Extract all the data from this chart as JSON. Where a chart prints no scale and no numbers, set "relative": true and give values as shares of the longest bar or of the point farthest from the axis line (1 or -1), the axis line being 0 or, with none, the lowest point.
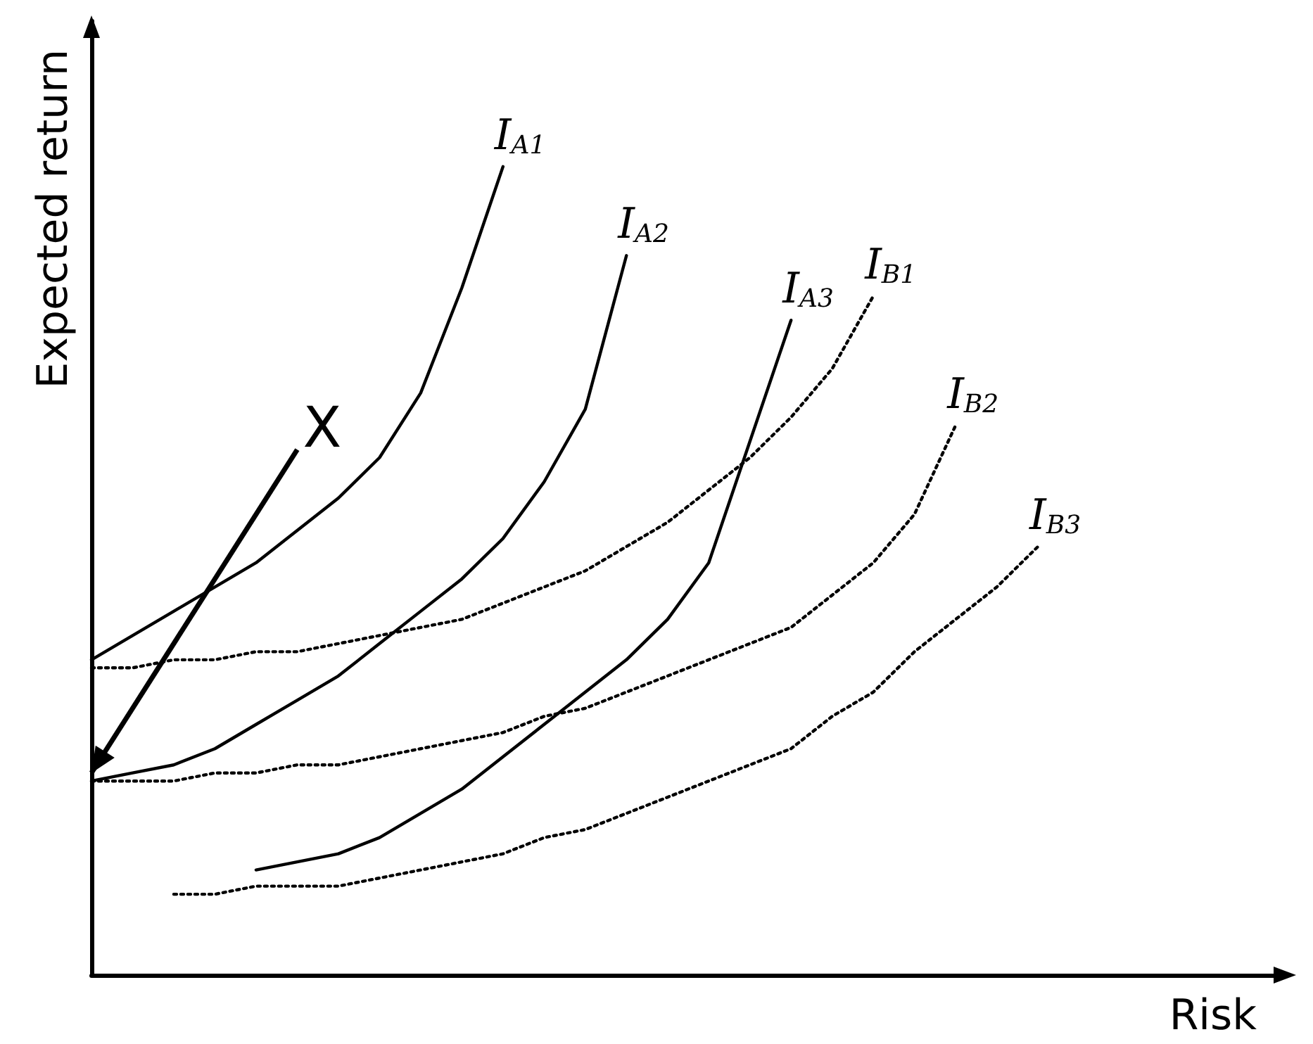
{
  "chart_data": {
    "type": "line",
    "relative": true,
    "xlabel": "Risk",
    "ylabel": "Expected return",
    "legend": false,
    "grid": false,
    "marker": "none",
    "categories": [
      null,
      null,
      null,
      null,
      null,
      null,
      null,
      null,
      null,
      null,
      null,
      null,
      null,
      null,
      null,
      null,
      null,
      null,
      null,
      null,
      null,
      null,
      null,
      null,
      null,
      null,
      null,
      null,
      null,
      null
    ],
    "annotations": [
      "X"
    ],
    "series": [
      {
        "name": "I$_{A1}$",
        "color": "#000000",
        "line_style": "solid",
        "values": [
          0.39,
          0.42,
          0.45,
          0.48,
          0.51,
          0.55,
          0.59,
          0.64,
          0.72,
          0.85,
          1.0,
          null,
          null,
          null,
          null,
          null,
          null,
          null,
          null,
          null,
          null,
          null,
          null,
          null,
          null,
          null,
          null,
          null,
          null,
          null
        ]
      },
      {
        "name": "I$_{A2}$",
        "color": "#000000",
        "line_style": "solid",
        "values": [
          0.24,
          0.25,
          0.26,
          0.28,
          0.31,
          0.34,
          0.37,
          0.41,
          0.45,
          0.49,
          0.54,
          0.61,
          0.7,
          0.89,
          null,
          null,
          null,
          null,
          null,
          null,
          null,
          null,
          null,
          null,
          null,
          null,
          null,
          null,
          null,
          null
        ]
      },
      {
        "name": "I$_{A3}$",
        "color": "#000000",
        "line_style": "solid",
        "values": [
          null,
          null,
          null,
          null,
          0.13,
          0.14,
          0.15,
          0.17,
          0.2,
          0.23,
          0.27,
          0.31,
          0.35,
          0.39,
          0.44,
          0.51,
          0.66,
          0.81,
          null,
          null,
          null,
          null,
          null,
          null,
          null,
          null,
          null,
          null,
          null,
          null
        ]
      },
      {
        "name": "I$_{B1}$",
        "color": "#000000",
        "line_style": "dotted",
        "values": [
          0.38,
          0.38,
          0.39,
          0.39,
          0.4,
          0.4,
          0.41,
          0.42,
          0.43,
          0.44,
          0.46,
          0.48,
          0.5,
          0.53,
          0.56,
          0.6,
          0.64,
          0.69,
          0.75,
          0.84,
          null,
          null,
          null,
          null,
          null,
          null,
          null,
          null,
          null,
          null
        ]
      },
      {
        "name": "I$_{B2}$",
        "color": "#000000",
        "line_style": "dotted",
        "values": [
          0.24,
          0.24,
          0.24,
          0.25,
          0.25,
          0.26,
          0.26,
          0.27,
          0.28,
          0.29,
          0.3,
          0.32,
          0.33,
          0.35,
          0.37,
          0.39,
          0.41,
          0.43,
          0.47,
          0.51,
          0.57,
          0.68,
          null,
          null,
          null,
          null,
          null,
          null,
          null,
          null
        ]
      },
      {
        "name": "I$_{B3}$",
        "color": "#000000",
        "line_style": "dotted",
        "values": [
          null,
          null,
          0.1,
          0.1,
          0.11,
          0.11,
          0.11,
          0.12,
          0.13,
          0.14,
          0.15,
          0.17,
          0.18,
          0.2,
          0.22,
          0.24,
          0.26,
          0.28,
          0.32,
          0.35,
          0.4,
          0.44,
          0.48,
          0.53,
          null,
          null,
          null,
          null,
          null,
          null
        ]
      }
    ]
  }
}
